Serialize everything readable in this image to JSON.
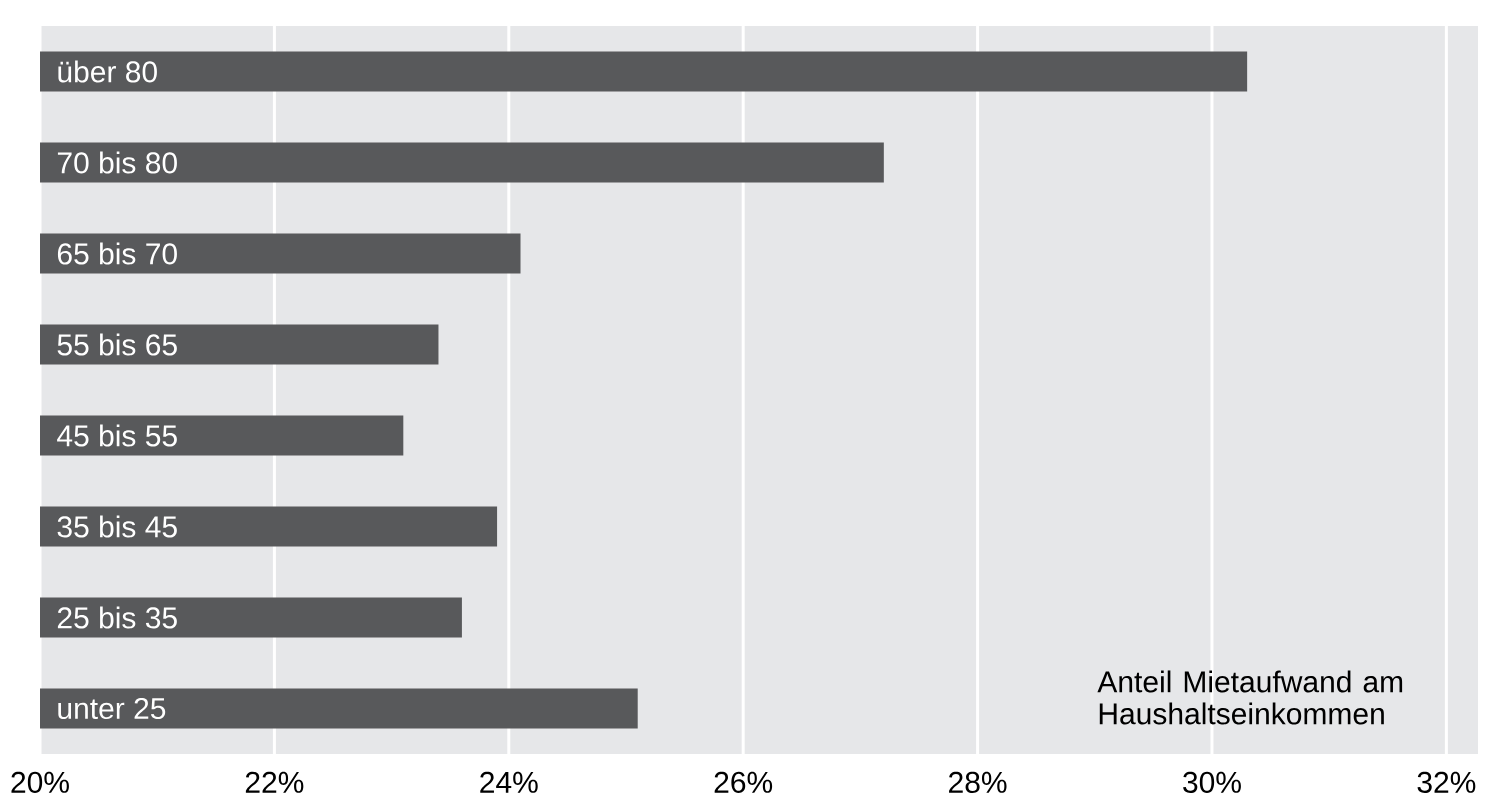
{
  "chart_data": {
    "type": "bar",
    "orientation": "horizontal",
    "categories": [
      "über 80",
      "70 bis 80",
      "65 bis 70",
      "55 bis 65",
      "45 bis 55",
      "35 bis 45",
      "25 bis 35",
      "unter 25"
    ],
    "values": [
      30.3,
      27.2,
      24.1,
      23.4,
      23.1,
      23.9,
      23.6,
      25.1
    ],
    "color": "#58595b",
    "xlim": [
      20,
      32.27
    ],
    "xticks": [
      {
        "value": 20,
        "label": "20%"
      },
      {
        "value": 22,
        "label": "22%"
      },
      {
        "value": 24,
        "label": "24%"
      },
      {
        "value": 26,
        "label": "26%"
      },
      {
        "value": 28,
        "label": "28%"
      },
      {
        "value": 30,
        "label": "30%"
      },
      {
        "value": 32,
        "label": "32%"
      }
    ],
    "grid": "x",
    "annotations": [
      "Anteil Mietaufwand am Haushaltseinkommen"
    ]
  }
}
